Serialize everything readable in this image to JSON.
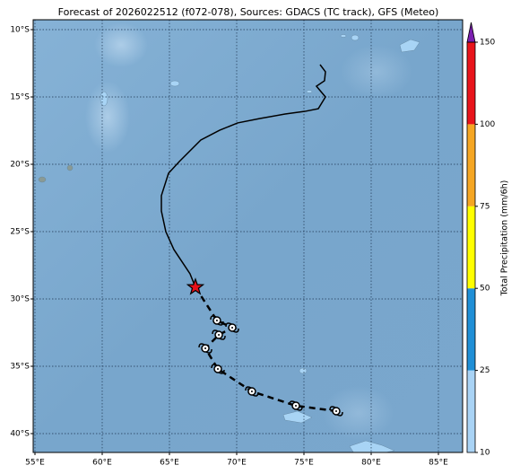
{
  "title": "Forecast of 2026022512 (f072-078), Sources: GDACS (TC track), GFS (Meteo)",
  "map": {
    "lon_ticks": [
      {
        "value": 55,
        "label": "55°E"
      },
      {
        "value": 60,
        "label": "60°E"
      },
      {
        "value": 65,
        "label": "65°E"
      },
      {
        "value": 70,
        "label": "70°E"
      },
      {
        "value": 75,
        "label": "75°E"
      },
      {
        "value": 80,
        "label": "80°E"
      },
      {
        "value": 85,
        "label": "85°E"
      }
    ],
    "lat_ticks": [
      {
        "value": -10,
        "label": "10°S"
      },
      {
        "value": -15,
        "label": "15°S"
      },
      {
        "value": -20,
        "label": "20°S"
      },
      {
        "value": -25,
        "label": "25°S"
      },
      {
        "value": -30,
        "label": "30°S"
      },
      {
        "value": -35,
        "label": "35°S"
      },
      {
        "value": -40,
        "label": "40°S"
      }
    ],
    "observed_track": {
      "lon": [
        76.2,
        76.6,
        76.53,
        75.93,
        76.6,
        76.07,
        75.07,
        73.6,
        71.73,
        70.07,
        68.73,
        67.33,
        65.73,
        64.93,
        64.4,
        64.4,
        64.73,
        65.33,
        66.53,
        66.93
      ],
      "lat": [
        -12.6,
        -13.13,
        -13.8,
        -14.2,
        -15.0,
        -15.87,
        -16.07,
        -16.27,
        -16.6,
        -16.93,
        -17.47,
        -18.2,
        -19.8,
        -20.67,
        -22.33,
        -23.47,
        -25.0,
        -26.33,
        -28.13,
        -29.13
      ]
    },
    "current_position": {
      "lon": 66.93,
      "lat": -29.13
    },
    "forecast_track": {
      "lon": [
        68.53,
        69.67,
        68.67,
        67.67,
        68.6,
        71.13,
        74.4,
        77.4
      ],
      "lat": [
        -31.6,
        -32.13,
        -32.67,
        -33.67,
        -35.2,
        -36.87,
        -37.93,
        -38.33
      ]
    }
  },
  "colorbar": {
    "label": "Total Precipitation (mm/6h)",
    "ticks": [
      10,
      25,
      50,
      75,
      100,
      150
    ],
    "colors": [
      "#a9d3f5",
      "#1f8fd6",
      "#ffff00",
      "#f5a623",
      "#e8141b"
    ],
    "extend_color": "#7b1fb0"
  }
}
